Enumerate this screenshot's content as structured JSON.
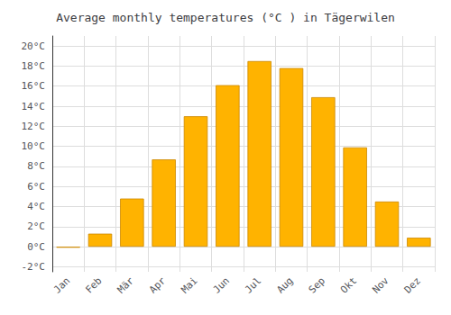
{
  "chart_data": {
    "type": "bar",
    "title": "Average monthly temperatures (°C ) in Tägerwilen",
    "categories": [
      "Jan",
      "Feb",
      "Mär",
      "Apr",
      "Mai",
      "Jun",
      "Jul",
      "Aug",
      "Sep",
      "Okt",
      "Nov",
      "Dez"
    ],
    "values": [
      -0.1,
      1.3,
      4.8,
      8.7,
      13.0,
      16.1,
      18.5,
      17.8,
      14.9,
      9.9,
      4.5,
      0.9
    ],
    "color": "#FFB300",
    "ylim": [
      -2.5,
      21
    ],
    "yticks": [
      {
        "value": -2,
        "label": "-2°C"
      },
      {
        "value": 0,
        "label": "0°C"
      },
      {
        "value": 2,
        "label": "2°C"
      },
      {
        "value": 4,
        "label": "4°C"
      },
      {
        "value": 6,
        "label": "6°C"
      },
      {
        "value": 8,
        "label": "8°C"
      },
      {
        "value": 10,
        "label": "10°C"
      },
      {
        "value": 12,
        "label": "12°C"
      },
      {
        "value": 14,
        "label": "14°C"
      },
      {
        "value": 16,
        "label": "16°C"
      },
      {
        "value": 18,
        "label": "18°C"
      },
      {
        "value": 20,
        "label": "20°C"
      }
    ],
    "grid": true
  }
}
